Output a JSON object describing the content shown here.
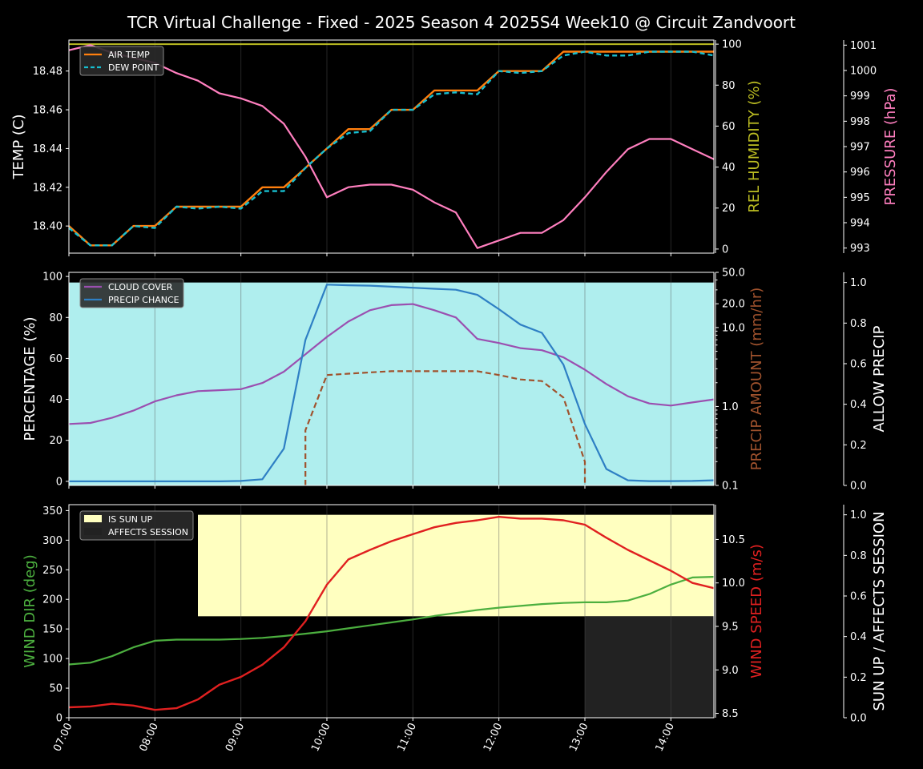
{
  "title": "TCR Virtual Challenge - Fixed - 2025 Season 4 2025S4 Week10 @ Circuit Zandvoort",
  "colors": {
    "air_temp": "#ff7f0e",
    "dew_point": "#17becf",
    "humidity": "#bcbd22",
    "pressure": "#ff7fbf",
    "cloud_cover": "#9b4fb0",
    "precip_chance": "#2e7fc4",
    "precip_amount": "#a0522d",
    "allow_precip_fill": "#afeeee",
    "wind_dir": "#4caf3f",
    "wind_speed": "#e02020",
    "sun_up_fill": "#ffffc0",
    "affects_session_fill": "#222222"
  },
  "chart_data": [
    {
      "type": "line",
      "panel": "temperature",
      "x": [
        "07:00",
        "07:15",
        "07:30",
        "07:45",
        "08:00",
        "08:15",
        "08:30",
        "08:45",
        "09:00",
        "09:15",
        "09:30",
        "09:45",
        "10:00",
        "10:15",
        "10:30",
        "10:45",
        "11:00",
        "11:15",
        "11:30",
        "11:45",
        "12:00",
        "12:15",
        "12:30",
        "12:45",
        "13:00",
        "13:15",
        "13:30",
        "13:45",
        "14:00",
        "14:15",
        "14:30"
      ],
      "xlim": [
        "07:00",
        "14:30"
      ],
      "xticks": [
        "07:00",
        "08:00",
        "09:00",
        "10:00",
        "11:00",
        "12:00",
        "13:00",
        "14:00"
      ],
      "ylabel": "TEMP (C)",
      "ylim": [
        18.386,
        18.496
      ],
      "yticks": [
        "18.40",
        "18.42",
        "18.44",
        "18.46",
        "18.48"
      ],
      "y2label": "REL HUMIDITY (%)",
      "y2lim": [
        -2,
        102
      ],
      "y2ticks": [
        "0",
        "20",
        "40",
        "60",
        "80",
        "100"
      ],
      "y3label": "PRESSURE (hPa)",
      "y3lim": [
        992.8,
        1001.2
      ],
      "y3ticks": [
        "993",
        "994",
        "995",
        "996",
        "997",
        "998",
        "999",
        "1000",
        "1001"
      ],
      "legend": [
        "AIR TEMP",
        "DEW POINT"
      ],
      "series": [
        {
          "name": "AIR TEMP",
          "axis": "temp",
          "values": [
            18.4,
            18.39,
            18.39,
            18.4,
            18.4,
            18.41,
            18.41,
            18.41,
            18.41,
            18.42,
            18.42,
            18.43,
            18.44,
            18.45,
            18.45,
            18.46,
            18.46,
            18.47,
            18.47,
            18.47,
            18.48,
            18.48,
            18.48,
            18.49,
            18.49,
            18.49,
            18.49,
            18.49,
            18.49,
            18.49,
            18.49
          ]
        },
        {
          "name": "DEW POINT",
          "axis": "temp",
          "values": [
            18.399,
            18.39,
            18.39,
            18.4,
            18.399,
            18.41,
            18.409,
            18.41,
            18.409,
            18.418,
            18.418,
            18.43,
            18.44,
            18.448,
            18.449,
            18.46,
            18.46,
            18.468,
            18.469,
            18.468,
            18.48,
            18.479,
            18.48,
            18.488,
            18.49,
            18.488,
            18.488,
            18.49,
            18.49,
            18.49,
            18.488
          ]
        },
        {
          "name": "REL HUMIDITY",
          "axis": "humidity",
          "values": [
            100,
            100,
            100,
            100,
            100,
            100,
            100,
            100,
            100,
            100,
            100,
            100,
            100,
            100,
            100,
            100,
            100,
            100,
            100,
            100,
            100,
            100,
            100,
            100,
            100,
            100,
            100,
            100,
            100,
            100,
            100
          ]
        },
        {
          "name": "PRESSURE",
          "axis": "pressure",
          "values": [
            1000.8,
            1001.0,
            1000.7,
            1000.5,
            1000.3,
            999.9,
            999.6,
            999.1,
            998.9,
            998.6,
            997.9,
            996.6,
            995.0,
            995.4,
            995.5,
            995.5,
            995.3,
            994.8,
            994.4,
            993.0,
            993.3,
            993.6,
            993.6,
            994.1,
            995.0,
            996.0,
            996.9,
            997.3,
            997.3,
            996.9,
            996.5
          ]
        }
      ]
    },
    {
      "type": "line",
      "panel": "precipitation",
      "ylabel": "PERCENTAGE (%)",
      "ylim": [
        -2,
        102
      ],
      "yticks": [
        "0",
        "20",
        "40",
        "60",
        "80",
        "100"
      ],
      "y2label": "PRECIP AMOUNT (mm/hr)",
      "y2scale": "log",
      "y2lim": [
        0.1,
        50.0
      ],
      "y2ticks": [
        "0.1",
        "1.0",
        "10.0",
        "20.0",
        "50.0"
      ],
      "y3label": "ALLOW PRECIP",
      "y3lim": [
        0,
        1.05
      ],
      "y3ticks": [
        "0.0",
        "0.2",
        "0.4",
        "0.6",
        "0.8",
        "1.0"
      ],
      "legend": [
        "CLOUD COVER",
        "PRECIP CHANCE"
      ],
      "allow_precip": 1.0,
      "series": [
        {
          "name": "CLOUD COVER",
          "values": [
            28,
            28.5,
            31,
            34.5,
            39,
            42,
            44,
            44.5,
            45,
            48,
            53.5,
            62,
            70.5,
            78,
            83.5,
            86,
            86.5,
            83.5,
            80,
            69.5,
            67.5,
            65,
            64,
            60.5,
            54.5,
            47.5,
            41.5,
            38,
            37,
            38.5,
            40
          ]
        },
        {
          "name": "PRECIP CHANCE",
          "values": [
            0,
            0,
            0,
            0,
            0,
            0,
            0,
            0,
            0.2,
            1,
            16,
            69,
            96,
            95.7,
            95.5,
            95,
            94.5,
            94,
            93.5,
            91,
            84,
            76.5,
            72.5,
            57,
            28,
            6,
            0.5,
            0.1,
            0.1,
            0.2,
            0.5
          ]
        },
        {
          "name": "PRECIP AMOUNT",
          "x": [
            "09:45",
            "10:00",
            "10:15",
            "10:30",
            "10:45",
            "11:00",
            "11:15",
            "11:30",
            "11:45",
            "12:00",
            "12:15",
            "12:30",
            "12:45",
            "13:00"
          ],
          "values": [
            0.5,
            2.5,
            2.6,
            2.7,
            2.8,
            2.8,
            2.8,
            2.8,
            2.8,
            2.5,
            2.2,
            2.1,
            1.3,
            0.2
          ],
          "drop_to_floor": true
        }
      ]
    },
    {
      "type": "line",
      "panel": "wind",
      "ylabel": "WIND DIR (deg)",
      "ylim": [
        0,
        360
      ],
      "yticks": [
        "0",
        "50",
        "100",
        "150",
        "200",
        "250",
        "300",
        "350"
      ],
      "y2label": "WIND SPEED (m/s)",
      "y2lim": [
        8.45,
        10.9
      ],
      "y2ticks": [
        "8.5",
        "9.0",
        "9.5",
        "10.0",
        "10.5"
      ],
      "y3label": "SUN UP / AFFECTS SESSION",
      "y3lim": [
        0,
        1.05
      ],
      "y3ticks": [
        "0.0",
        "0.2",
        "0.4",
        "0.6",
        "0.8",
        "1.0"
      ],
      "legend": [
        "IS SUN UP",
        "AFFECTS SESSION"
      ],
      "is_sun_up": {
        "from": "08:30",
        "to": "14:30",
        "value": 1.0
      },
      "affects_session": {
        "from": "13:00",
        "to": "14:30",
        "value": 0.5
      },
      "series": [
        {
          "name": "WIND DIR",
          "values": [
            90,
            93,
            104,
            119,
            130,
            132,
            132,
            132,
            133,
            135,
            138,
            142,
            146,
            151,
            156,
            161,
            166,
            172,
            177,
            182,
            186,
            189,
            192,
            194,
            195,
            195,
            198,
            209,
            225,
            237,
            238
          ]
        },
        {
          "name": "WIND SPEED",
          "values": [
            8.57,
            8.58,
            8.61,
            8.59,
            8.54,
            8.56,
            8.66,
            8.83,
            8.92,
            9.06,
            9.26,
            9.56,
            9.98,
            10.27,
            10.38,
            10.48,
            10.56,
            10.64,
            10.69,
            10.72,
            10.76,
            10.74,
            10.74,
            10.72,
            10.67,
            10.52,
            10.38,
            10.26,
            10.14,
            10.0,
            9.94
          ]
        }
      ]
    }
  ]
}
